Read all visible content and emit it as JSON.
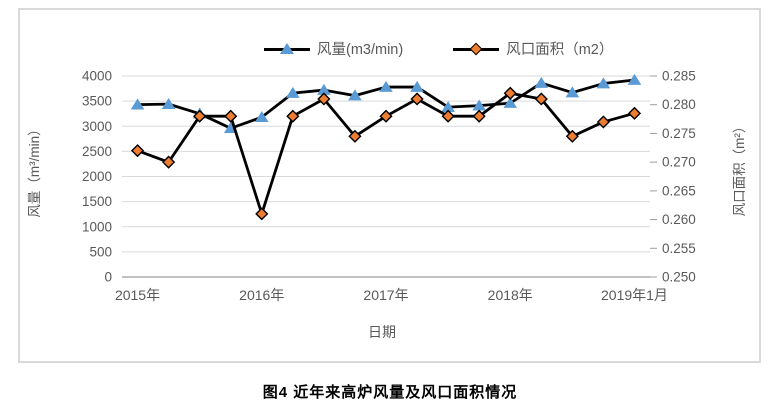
{
  "caption": "图4  近年来高炉风量及风口面积情况",
  "colors": {
    "grid": "#d9d9d9",
    "axis_line": "#9c9c9c",
    "tick_text": "#595959",
    "series_line": "#000000",
    "airflow_marker": "#5b9bd5",
    "area_marker": "#ed7d31",
    "frame_border": "#d9d9d9"
  },
  "chart_data": {
    "type": "line",
    "x_point_count": 17,
    "x_tick_labels": [
      {
        "index": 0,
        "label": "2015年"
      },
      {
        "index": 4,
        "label": "2016年"
      },
      {
        "index": 8,
        "label": "2017年"
      },
      {
        "index": 12,
        "label": "2018年"
      },
      {
        "index": 16,
        "label": "2019年1月"
      }
    ],
    "xlabel": "日期",
    "legend_position": "top",
    "grid": true,
    "left_axis": {
      "title": "风量（m³/min）",
      "min": 0,
      "max": 4000,
      "step": 500,
      "tick_labels": [
        "4000",
        "3500",
        "3000",
        "2500",
        "2000",
        "1500",
        "1000",
        "500",
        "0"
      ]
    },
    "right_axis": {
      "title": "风口面积（m²）",
      "min": 0.25,
      "max": 0.285,
      "step": 0.005,
      "tick_labels": [
        "0.285",
        "0.280",
        "0.275",
        "0.270",
        "0.265",
        "0.260",
        "0.255",
        "0.250"
      ]
    },
    "series": [
      {
        "name": "风量(m3/min)",
        "axis": "left",
        "marker": "triangle",
        "values": [
          3430,
          3440,
          3250,
          2960,
          3180,
          3660,
          3720,
          3610,
          3780,
          3780,
          3380,
          3410,
          3460,
          3860,
          3670,
          3850,
          3920
        ]
      },
      {
        "name": "风口面积（m2）",
        "axis": "right",
        "marker": "diamond",
        "values": [
          0.272,
          0.27,
          0.278,
          0.278,
          0.261,
          0.278,
          0.281,
          0.2745,
          0.278,
          0.281,
          0.278,
          0.278,
          0.282,
          0.281,
          0.2745,
          0.277,
          0.2785
        ]
      }
    ]
  }
}
